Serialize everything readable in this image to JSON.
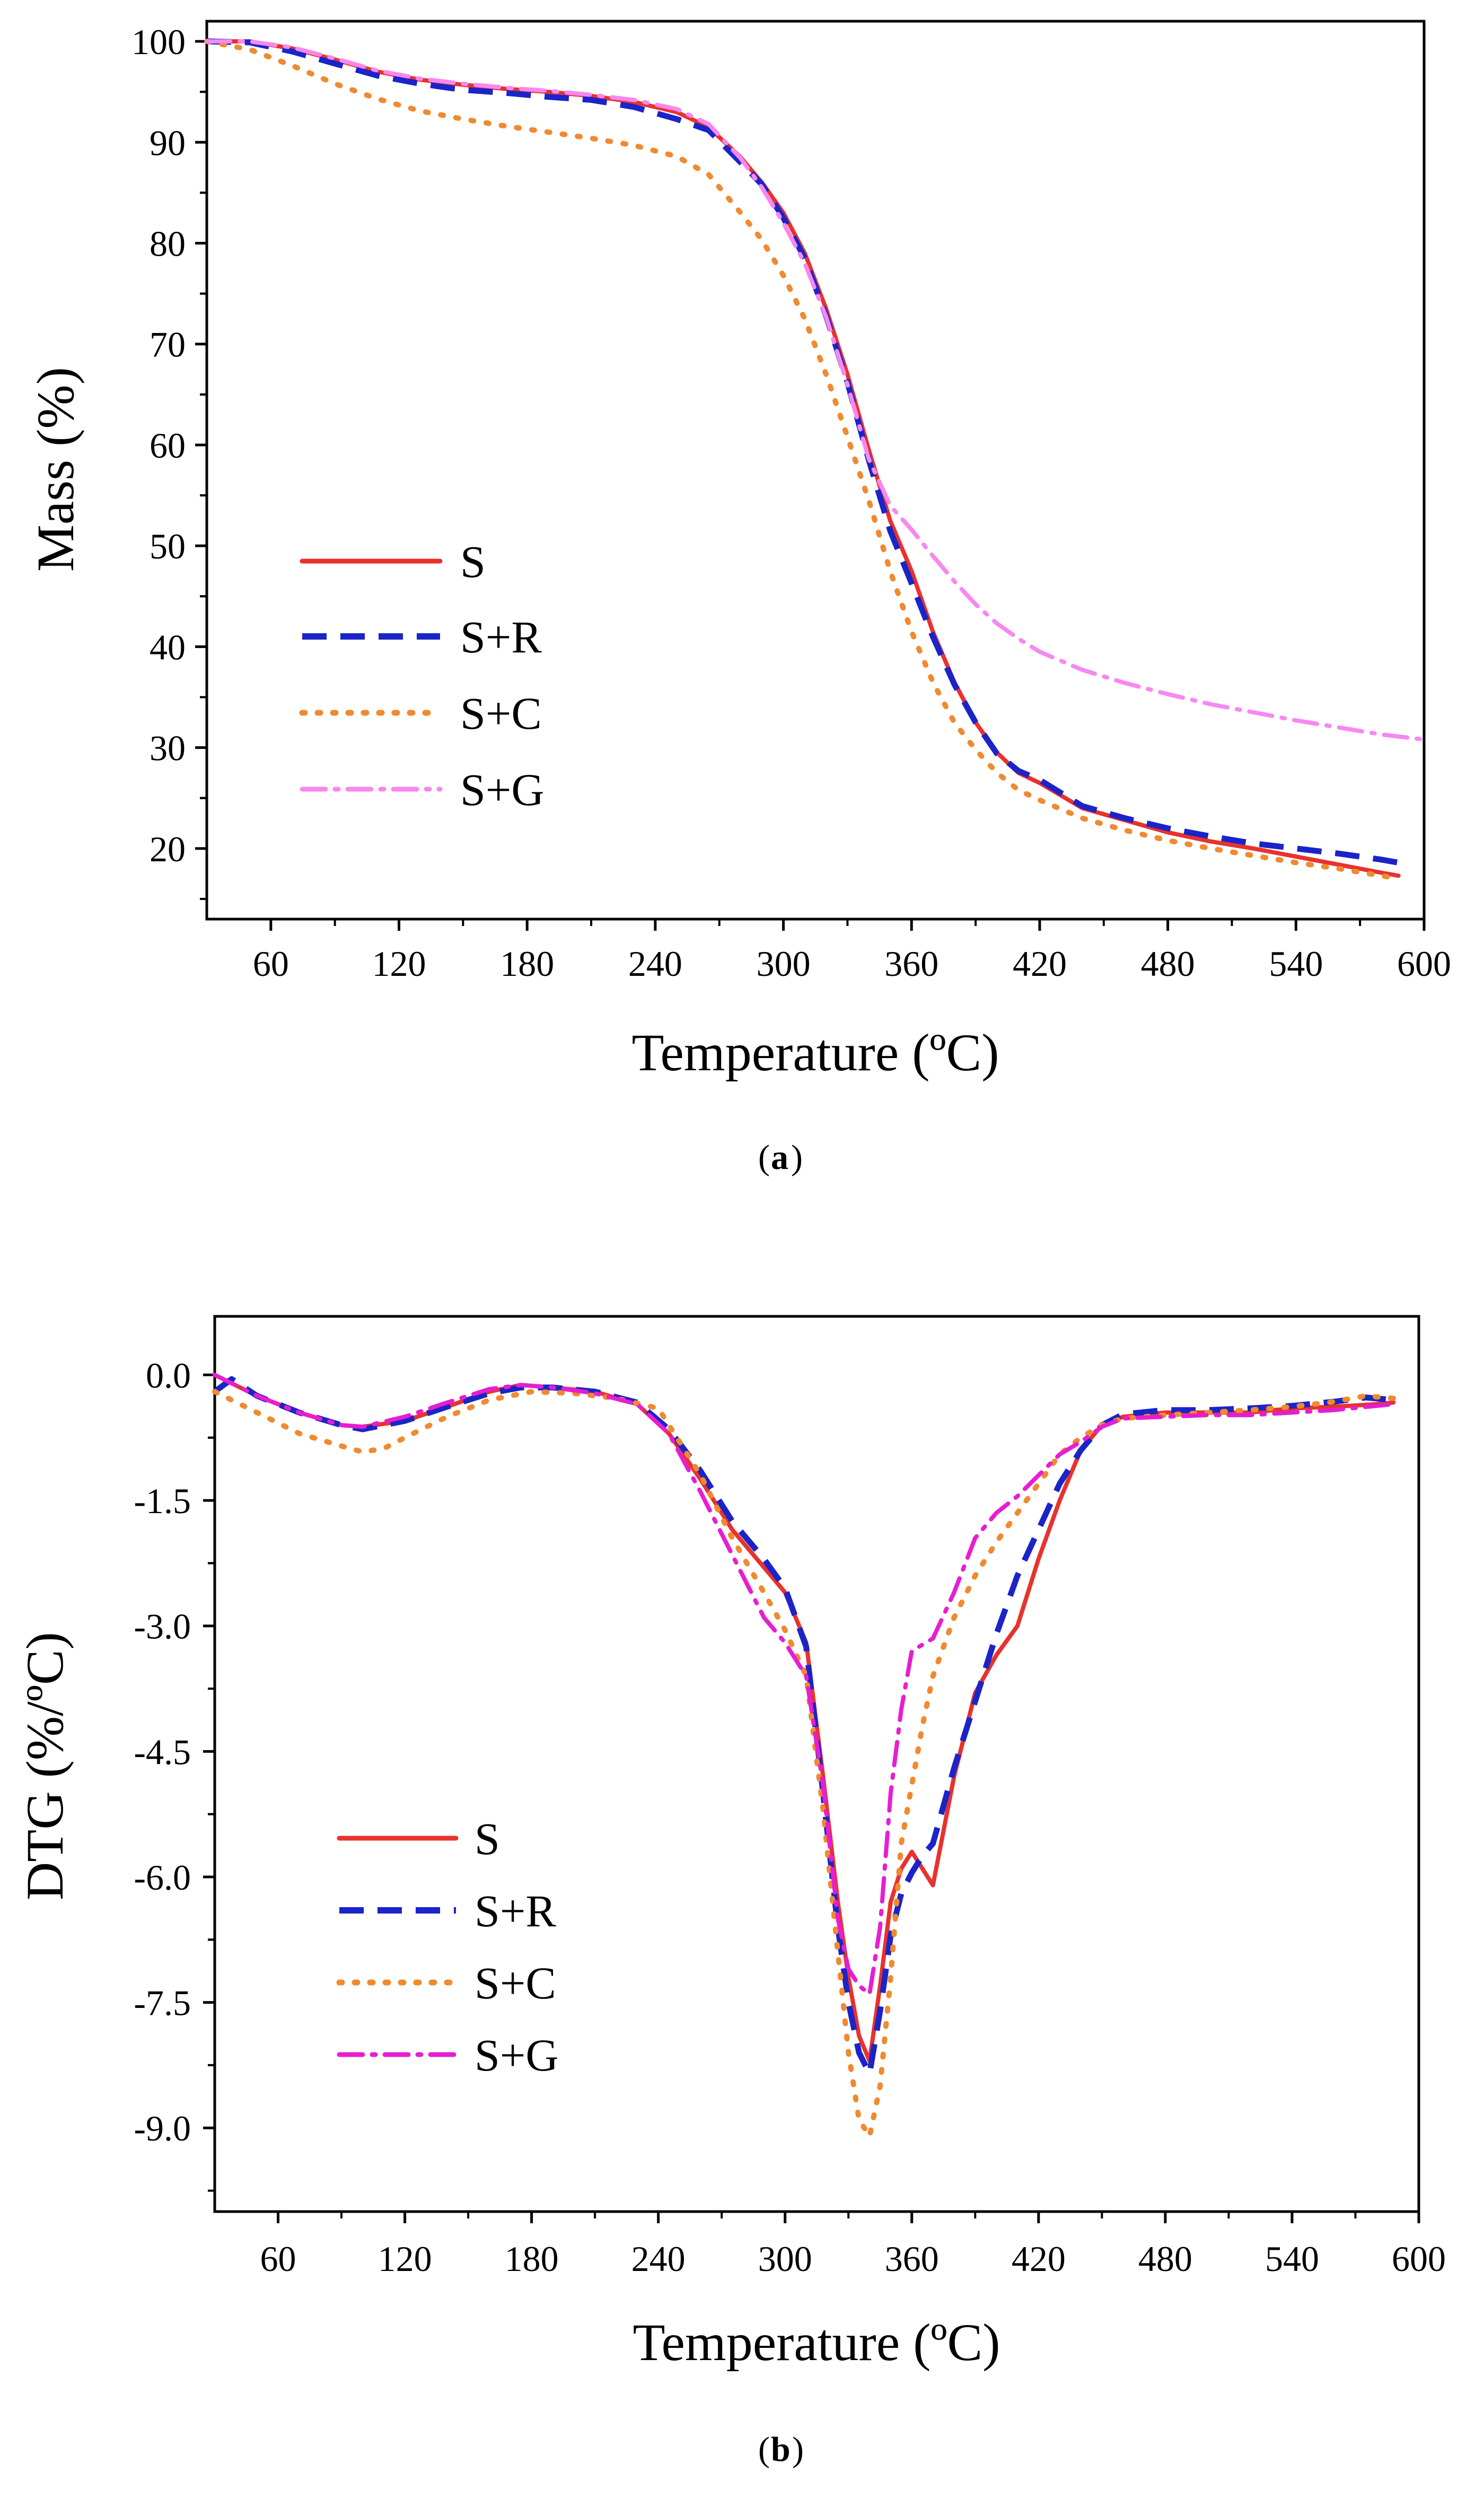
{
  "chart_data": [
    {
      "id": "a",
      "type": "line",
      "panel_label": "a",
      "xlabel": "Temperature (ºC)",
      "ylabel": "Mass (%)",
      "xlim": [
        30,
        600
      ],
      "ylim": [
        13,
        102
      ],
      "xticks": [
        60,
        120,
        180,
        240,
        300,
        360,
        420,
        480,
        540,
        600
      ],
      "yticks": [
        20,
        30,
        40,
        50,
        60,
        70,
        80,
        90,
        100
      ],
      "xtick_labels": [
        "60",
        "120",
        "180",
        "240",
        "300",
        "360",
        "420",
        "480",
        "540",
        "600"
      ],
      "ytick_labels": [
        "20",
        "30",
        "40",
        "50",
        "60",
        "70",
        "80",
        "90",
        "100"
      ],
      "grid": false,
      "legend_position": "middle-left",
      "series": [
        {
          "name": "S",
          "color": "#e8322e",
          "style": "solid",
          "x": [
            30,
            50,
            70,
            90,
            110,
            130,
            150,
            170,
            190,
            210,
            230,
            250,
            265,
            280,
            290,
            300,
            310,
            320,
            330,
            340,
            350,
            360,
            370,
            380,
            390,
            400,
            410,
            420,
            440,
            460,
            480,
            500,
            520,
            540,
            560,
            580,
            588
          ],
          "y": [
            100,
            100,
            99.3,
            98.2,
            97,
            96.2,
            95.7,
            95.3,
            95,
            94.6,
            94,
            93,
            91.5,
            88.5,
            86,
            83,
            79,
            73.5,
            67,
            59.5,
            52.5,
            47.5,
            41.5,
            36.5,
            32.5,
            29.5,
            27.5,
            26.5,
            24,
            22.8,
            21.6,
            20.7,
            20,
            19.2,
            18.4,
            17.6,
            17.3
          ]
        },
        {
          "name": "S+R",
          "color": "#1a24c8",
          "style": "dashed",
          "x": [
            30,
            50,
            70,
            90,
            110,
            130,
            150,
            170,
            190,
            210,
            230,
            250,
            265,
            280,
            290,
            300,
            310,
            320,
            330,
            340,
            350,
            360,
            370,
            380,
            390,
            400,
            410,
            420,
            440,
            460,
            480,
            500,
            520,
            540,
            560,
            580,
            588
          ],
          "y": [
            100,
            99.9,
            99,
            97.8,
            96.6,
            95.8,
            95.2,
            94.9,
            94.5,
            94.2,
            93.5,
            92.3,
            91.2,
            88,
            85.8,
            82.5,
            78.5,
            72.8,
            66.2,
            58.5,
            51.5,
            46.3,
            41,
            36.3,
            32.5,
            29.4,
            27.7,
            26.8,
            24.2,
            23,
            22,
            21.2,
            20.5,
            20,
            19.5,
            18.9,
            18.6
          ]
        },
        {
          "name": "S+C",
          "color": "#f08a30",
          "style": "dotted",
          "x": [
            30,
            50,
            70,
            90,
            110,
            130,
            150,
            170,
            190,
            210,
            230,
            250,
            265,
            280,
            290,
            300,
            310,
            320,
            330,
            340,
            350,
            360,
            370,
            380,
            390,
            400,
            410,
            420,
            440,
            460,
            480,
            500,
            520,
            540,
            560,
            580,
            588
          ],
          "y": [
            100,
            99.2,
            97.6,
            95.8,
            94.3,
            93.1,
            92.3,
            91.6,
            91,
            90.4,
            89.7,
            88.6,
            86.8,
            83,
            80.3,
            76.8,
            72.5,
            67,
            60.8,
            54.5,
            47.5,
            41.5,
            36.5,
            32.5,
            29.8,
            27.5,
            25.8,
            24.8,
            23,
            21.8,
            20.8,
            20,
            19.3,
            18.6,
            18,
            17.3,
            17
          ]
        },
        {
          "name": "S+G",
          "color": "#f788f0",
          "style": "dashdot",
          "x": [
            30,
            50,
            70,
            90,
            110,
            130,
            150,
            170,
            190,
            210,
            230,
            250,
            265,
            280,
            290,
            300,
            310,
            320,
            330,
            340,
            350,
            360,
            370,
            380,
            390,
            400,
            410,
            420,
            440,
            460,
            480,
            500,
            520,
            540,
            560,
            580,
            600
          ],
          "y": [
            100,
            100,
            99.4,
            98.3,
            97.1,
            96.3,
            95.8,
            95.4,
            95.1,
            94.7,
            94.2,
            93.3,
            91.8,
            88.4,
            85.5,
            82,
            78,
            72.7,
            66,
            58.6,
            54,
            51.6,
            49,
            46.5,
            44.2,
            42.3,
            40.8,
            39.5,
            37.7,
            36.4,
            35.3,
            34.3,
            33.5,
            32.7,
            32,
            31.3,
            30.8
          ]
        }
      ]
    },
    {
      "id": "b",
      "type": "line",
      "panel_label": "b",
      "xlabel": "Temperature (ºC)",
      "ylabel": "DTG (%/ºC)",
      "xlim": [
        30,
        600
      ],
      "ylim": [
        -10.0,
        0.7
      ],
      "xticks": [
        60,
        120,
        180,
        240,
        300,
        360,
        420,
        480,
        540,
        600
      ],
      "yticks": [
        0.0,
        -1.5,
        -3.0,
        -4.5,
        -6.0,
        -7.5,
        -9.0
      ],
      "xtick_labels": [
        "60",
        "120",
        "180",
        "240",
        "300",
        "360",
        "420",
        "480",
        "540",
        "600"
      ],
      "ytick_labels": [
        "0.0",
        "-1.5",
        "-3.0",
        "-4.5",
        "-6.0",
        "-7.5",
        "-9.0"
      ],
      "grid": false,
      "legend_position": "lower-left",
      "series": [
        {
          "name": "S",
          "color": "#e8322e",
          "style": "solid",
          "x": [
            30,
            50,
            70,
            90,
            100,
            120,
            140,
            160,
            175,
            190,
            210,
            230,
            245,
            260,
            275,
            290,
            300,
            310,
            318,
            325,
            330,
            335,
            340,
            345,
            350,
            355,
            360,
            365,
            370,
            380,
            390,
            400,
            410,
            420,
            430,
            440,
            450,
            460,
            480,
            500,
            520,
            540,
            560,
            580,
            588
          ],
          "y": [
            0,
            -0.25,
            -0.45,
            -0.6,
            -0.62,
            -0.55,
            -0.38,
            -0.2,
            -0.12,
            -0.15,
            -0.2,
            -0.35,
            -0.7,
            -1.25,
            -1.85,
            -2.3,
            -2.6,
            -3.2,
            -4.8,
            -6.3,
            -7.2,
            -7.9,
            -8.2,
            -7.3,
            -6.3,
            -5.9,
            -5.7,
            -5.9,
            -6.1,
            -4.8,
            -3.8,
            -3.35,
            -3.0,
            -2.2,
            -1.5,
            -0.9,
            -0.6,
            -0.5,
            -0.45,
            -0.45,
            -0.45,
            -0.4,
            -0.38,
            -0.35,
            -0.33
          ]
        },
        {
          "name": "S+R",
          "color": "#1a24c8",
          "style": "dashed",
          "x": [
            30,
            38,
            50,
            70,
            90,
            100,
            120,
            140,
            160,
            175,
            190,
            210,
            230,
            245,
            260,
            275,
            290,
            300,
            310,
            318,
            325,
            330,
            335,
            340,
            345,
            350,
            355,
            360,
            365,
            370,
            380,
            390,
            400,
            410,
            420,
            430,
            440,
            450,
            460,
            480,
            500,
            520,
            540,
            560,
            575,
            588
          ],
          "y": [
            -0.2,
            -0.05,
            -0.25,
            -0.45,
            -0.6,
            -0.65,
            -0.55,
            -0.38,
            -0.22,
            -0.15,
            -0.15,
            -0.2,
            -0.33,
            -0.65,
            -1.15,
            -1.75,
            -2.2,
            -2.55,
            -3.25,
            -5.0,
            -6.6,
            -7.5,
            -8.1,
            -8.35,
            -7.6,
            -6.7,
            -6.2,
            -5.95,
            -5.75,
            -5.6,
            -4.7,
            -3.9,
            -3.1,
            -2.4,
            -1.85,
            -1.3,
            -0.9,
            -0.6,
            -0.47,
            -0.42,
            -0.42,
            -0.4,
            -0.37,
            -0.32,
            -0.27,
            -0.3
          ]
        },
        {
          "name": "S+C",
          "color": "#f08a30",
          "style": "dotted",
          "x": [
            30,
            50,
            70,
            90,
            100,
            110,
            120,
            140,
            160,
            180,
            200,
            220,
            240,
            260,
            275,
            290,
            300,
            310,
            318,
            325,
            330,
            335,
            340,
            345,
            350,
            355,
            360,
            365,
            370,
            380,
            390,
            400,
            410,
            420,
            430,
            440,
            450,
            460,
            480,
            500,
            520,
            540,
            560,
            575,
            588
          ],
          "y": [
            -0.2,
            -0.45,
            -0.7,
            -0.85,
            -0.92,
            -0.88,
            -0.75,
            -0.5,
            -0.3,
            -0.2,
            -0.22,
            -0.28,
            -0.4,
            -1.2,
            -1.95,
            -2.6,
            -3.05,
            -3.6,
            -5.2,
            -6.9,
            -8.1,
            -8.9,
            -9.1,
            -8.5,
            -7.2,
            -5.6,
            -4.9,
            -4.2,
            -3.6,
            -2.9,
            -2.4,
            -2.0,
            -1.65,
            -1.3,
            -0.95,
            -0.75,
            -0.6,
            -0.52,
            -0.48,
            -0.45,
            -0.42,
            -0.38,
            -0.32,
            -0.25,
            -0.28
          ]
        },
        {
          "name": "S+G",
          "color": "#e61ed2",
          "style": "dashdot",
          "x": [
            30,
            50,
            70,
            90,
            100,
            120,
            140,
            160,
            175,
            190,
            210,
            230,
            245,
            260,
            275,
            290,
            300,
            310,
            318,
            325,
            330,
            335,
            340,
            345,
            350,
            355,
            360,
            370,
            380,
            390,
            400,
            410,
            420,
            430,
            440,
            450,
            460,
            480,
            500,
            520,
            540,
            560,
            580,
            588
          ],
          "y": [
            0,
            -0.25,
            -0.45,
            -0.6,
            -0.62,
            -0.5,
            -0.33,
            -0.17,
            -0.12,
            -0.15,
            -0.22,
            -0.35,
            -0.7,
            -1.4,
            -2.15,
            -2.9,
            -3.2,
            -3.6,
            -4.9,
            -6.5,
            -7.1,
            -7.3,
            -7.4,
            -6.6,
            -5.0,
            -4.0,
            -3.3,
            -3.15,
            -2.6,
            -1.95,
            -1.65,
            -1.45,
            -1.2,
            -0.95,
            -0.8,
            -0.62,
            -0.52,
            -0.5,
            -0.48,
            -0.48,
            -0.45,
            -0.42,
            -0.37,
            -0.35
          ]
        }
      ]
    }
  ]
}
